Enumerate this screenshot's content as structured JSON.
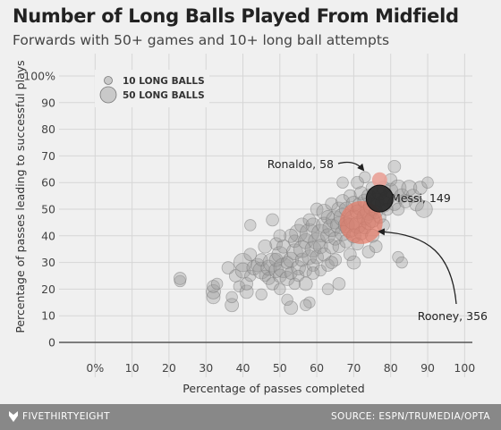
{
  "title": "Number of Long Balls Played From Midfield",
  "subtitle": "Forwards with 50+ games and 10+ long ball attempts",
  "footer": {
    "brand": "FIVETHIRTYEIGHT",
    "source": "SOURCE: ESPN/TRUMEDIA/OPTA",
    "brand_icon": "fivethirtyeight-logo-icon"
  },
  "colors": {
    "background": "#f0f0f0",
    "grid": "#d6d6d6",
    "bubble": "#9a9a9a",
    "highlight_ronaldo": "#e9a197",
    "highlight_rooney": "#e57864",
    "highlight_messi": "#2a2a2a",
    "footer": "#888888"
  },
  "chart_data": {
    "type": "scatter",
    "xlabel": "Percentage of passes completed",
    "ylabel": "Percentage of passes leading to successful plays",
    "xlim": [
      -10,
      105
    ],
    "ylim": [
      0,
      100
    ],
    "xticks": [
      "0%",
      "10",
      "20",
      "30",
      "40",
      "50",
      "60",
      "70",
      "80",
      "90",
      "100"
    ],
    "xtick_values": [
      0,
      10,
      20,
      30,
      40,
      50,
      60,
      70,
      80,
      90,
      100
    ],
    "yticks": [
      "0",
      "10",
      "20",
      "30",
      "40",
      "50",
      "60",
      "70",
      "80",
      "90",
      "100%"
    ],
    "ytick_values": [
      0,
      10,
      20,
      30,
      40,
      50,
      60,
      70,
      80,
      90,
      100
    ],
    "grid": true,
    "size_legend": [
      {
        "label": "10 LONG BALLS",
        "value": 10
      },
      {
        "label": "50 LONG BALLS",
        "value": 50
      }
    ],
    "legend_position": "top-left",
    "highlights": [
      {
        "name": "Ronaldo",
        "label": "Ronaldo, 58",
        "x": 77,
        "y": 61,
        "long_balls": 58
      },
      {
        "name": "Rooney",
        "label": "Rooney, 356",
        "x": 72,
        "y": 45,
        "long_balls": 356
      },
      {
        "name": "Messi",
        "label": "Messi, 149",
        "x": 77,
        "y": 54,
        "long_balls": 149
      }
    ],
    "points": [
      [
        23,
        23,
        10
      ],
      [
        23,
        24,
        12
      ],
      [
        32,
        17,
        14
      ],
      [
        32,
        19,
        16
      ],
      [
        32,
        21,
        12
      ],
      [
        33,
        22,
        10
      ],
      [
        37,
        14,
        14
      ],
      [
        37,
        17,
        10
      ],
      [
        38,
        25,
        12
      ],
      [
        39,
        21,
        10
      ],
      [
        40,
        30,
        26
      ],
      [
        40,
        27,
        18
      ],
      [
        41,
        19,
        14
      ],
      [
        41,
        22,
        12
      ],
      [
        42,
        25,
        10
      ],
      [
        42,
        33,
        12
      ],
      [
        43,
        28,
        16
      ],
      [
        44,
        29,
        14
      ],
      [
        45,
        27,
        22
      ],
      [
        45,
        31,
        12
      ],
      [
        46,
        25,
        10
      ],
      [
        46,
        36,
        14
      ],
      [
        47,
        24,
        12
      ],
      [
        47,
        28,
        18
      ],
      [
        48,
        30,
        28
      ],
      [
        48,
        22,
        12
      ],
      [
        49,
        27,
        16
      ],
      [
        49,
        31,
        14
      ],
      [
        49,
        37,
        12
      ],
      [
        50,
        33,
        20
      ],
      [
        50,
        25,
        14
      ],
      [
        50,
        20,
        10
      ],
      [
        51,
        28,
        30
      ],
      [
        51,
        36,
        14
      ],
      [
        52,
        24,
        16
      ],
      [
        52,
        30,
        12
      ],
      [
        52,
        16,
        10
      ],
      [
        53,
        31,
        18
      ],
      [
        53,
        26,
        12
      ],
      [
        53,
        13,
        14
      ],
      [
        54,
        22,
        10
      ],
      [
        54,
        34,
        20
      ],
      [
        54,
        38,
        12
      ],
      [
        55,
        28,
        16
      ],
      [
        55,
        41,
        24
      ],
      [
        55,
        25,
        10
      ],
      [
        56,
        31,
        14
      ],
      [
        56,
        44,
        16
      ],
      [
        56,
        35,
        22
      ],
      [
        57,
        27,
        12
      ],
      [
        57,
        38,
        18
      ],
      [
        57,
        22,
        14
      ],
      [
        58,
        32,
        16
      ],
      [
        58,
        41,
        28
      ],
      [
        58,
        46,
        12
      ],
      [
        59,
        35,
        20
      ],
      [
        59,
        29,
        12
      ],
      [
        59,
        44,
        16
      ],
      [
        60,
        38,
        22
      ],
      [
        60,
        32,
        14
      ],
      [
        60,
        50,
        12
      ],
      [
        61,
        41,
        24
      ],
      [
        61,
        36,
        16
      ],
      [
        61,
        27,
        10
      ],
      [
        62,
        44,
        20
      ],
      [
        62,
        33,
        14
      ],
      [
        62,
        49,
        18
      ],
      [
        63,
        40,
        16
      ],
      [
        63,
        47,
        14
      ],
      [
        63,
        29,
        12
      ],
      [
        64,
        43,
        24
      ],
      [
        64,
        36,
        16
      ],
      [
        64,
        52,
        12
      ],
      [
        65,
        46,
        26
      ],
      [
        65,
        39,
        14
      ],
      [
        65,
        31,
        12
      ],
      [
        66,
        44,
        22
      ],
      [
        66,
        50,
        16
      ],
      [
        66,
        36,
        12
      ],
      [
        67,
        47,
        24
      ],
      [
        67,
        41,
        18
      ],
      [
        67,
        53,
        14
      ],
      [
        68,
        44,
        20
      ],
      [
        68,
        38,
        14
      ],
      [
        68,
        50,
        16
      ],
      [
        69,
        43,
        28
      ],
      [
        69,
        33,
        12
      ],
      [
        69,
        55,
        12
      ],
      [
        70,
        46,
        30
      ],
      [
        70,
        40,
        16
      ],
      [
        70,
        52,
        18
      ],
      [
        71,
        44,
        22
      ],
      [
        71,
        49,
        16
      ],
      [
        71,
        37,
        12
      ],
      [
        72,
        51,
        26
      ],
      [
        72,
        41,
        14
      ],
      [
        72,
        56,
        14
      ],
      [
        73,
        47,
        20
      ],
      [
        73,
        53,
        16
      ],
      [
        73,
        43,
        12
      ],
      [
        74,
        49,
        22
      ],
      [
        74,
        55,
        14
      ],
      [
        74,
        45,
        16
      ],
      [
        75,
        51,
        24
      ],
      [
        75,
        58,
        12
      ],
      [
        75,
        46,
        18
      ],
      [
        76,
        53,
        20
      ],
      [
        76,
        49,
        14
      ],
      [
        77,
        56,
        16
      ],
      [
        77,
        47,
        12
      ],
      [
        78,
        52,
        22
      ],
      [
        78,
        58,
        14
      ],
      [
        79,
        54,
        18
      ],
      [
        79,
        50,
        12
      ],
      [
        80,
        57,
        16
      ],
      [
        80,
        61,
        12
      ],
      [
        81,
        52,
        14
      ],
      [
        81,
        66,
        12
      ],
      [
        82,
        58,
        20
      ],
      [
        82,
        50,
        12
      ],
      [
        82,
        32,
        10
      ],
      [
        83,
        55,
        16
      ],
      [
        83,
        30,
        10
      ],
      [
        84,
        53,
        14
      ],
      [
        85,
        58,
        18
      ],
      [
        86,
        55,
        14
      ],
      [
        87,
        52,
        16
      ],
      [
        88,
        58,
        14
      ],
      [
        89,
        50,
        22
      ],
      [
        90,
        60,
        10
      ],
      [
        64,
        30,
        12
      ],
      [
        63,
        20,
        10
      ],
      [
        59,
        26,
        12
      ],
      [
        58,
        15,
        10
      ],
      [
        57,
        14,
        10
      ],
      [
        66,
        22,
        12
      ],
      [
        70,
        30,
        14
      ],
      [
        74,
        34,
        12
      ],
      [
        67,
        60,
        10
      ],
      [
        71,
        60,
        12
      ],
      [
        73,
        62,
        10
      ],
      [
        78,
        44,
        12
      ],
      [
        48,
        46,
        12
      ],
      [
        42,
        44,
        10
      ],
      [
        36,
        28,
        12
      ],
      [
        45,
        18,
        10
      ],
      [
        53,
        40,
        14
      ],
      [
        50,
        40,
        12
      ],
      [
        75,
        40,
        14
      ],
      [
        76,
        36,
        12
      ]
    ]
  }
}
